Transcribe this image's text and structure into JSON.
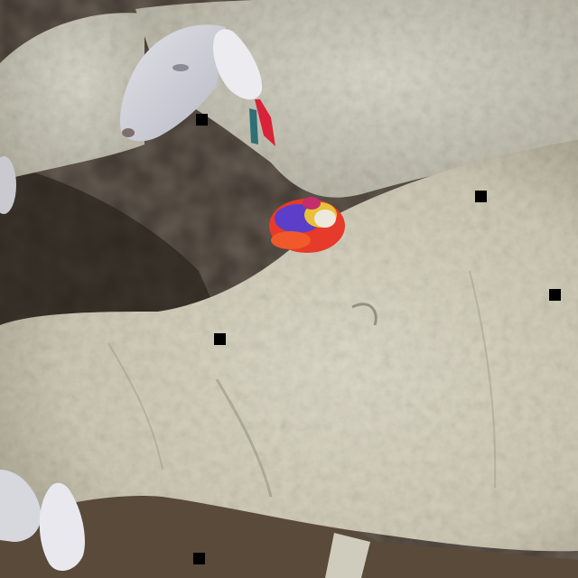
{
  "image": {
    "subject": "sheep",
    "colors": {
      "ground_dark": "#2e2620",
      "ground_mid": "#4a3f35",
      "wool_light": "#d9d5c4",
      "wool_shadow": "#a9a491",
      "face": "#cfcfd6",
      "tassel_red": "#e63a2a",
      "tassel_blue": "#5b3fc8",
      "tassel_yellow": "#e8c23a",
      "marker": "#000000"
    }
  }
}
